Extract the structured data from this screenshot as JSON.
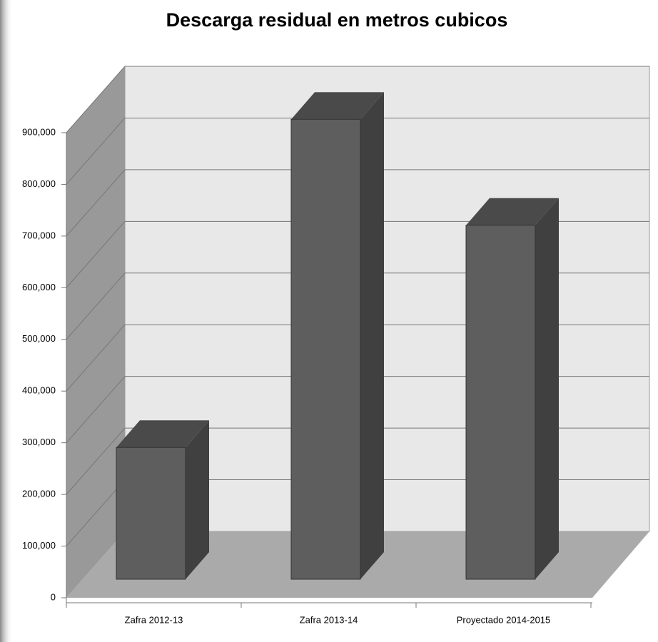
{
  "chart_data": {
    "type": "bar3d",
    "title": "Descarga residual en metros cubicos",
    "categories": [
      "Zafra 2012-13",
      "Zafra 2013-14",
      "Proyectado 2014-2015"
    ],
    "values": [
      255000,
      890000,
      685000
    ],
    "color": "#5e5e5e",
    "ylim": [
      0,
      900000
    ],
    "yticks": [
      0,
      {
        "value": 100000,
        "label": "100,000"
      },
      {
        "value": 200000,
        "label": "200,000"
      },
      {
        "value": 300000,
        "label": "300,000"
      },
      {
        "value": 400000,
        "label": "400,000"
      },
      {
        "value": 500000,
        "label": "500,000"
      },
      {
        "value": 600000,
        "label": "600,000"
      },
      {
        "value": 700000,
        "label": "700,000"
      },
      {
        "value": 800000,
        "label": "800,000"
      },
      {
        "value": 900000,
        "label": "900,000"
      }
    ],
    "grid": true
  }
}
